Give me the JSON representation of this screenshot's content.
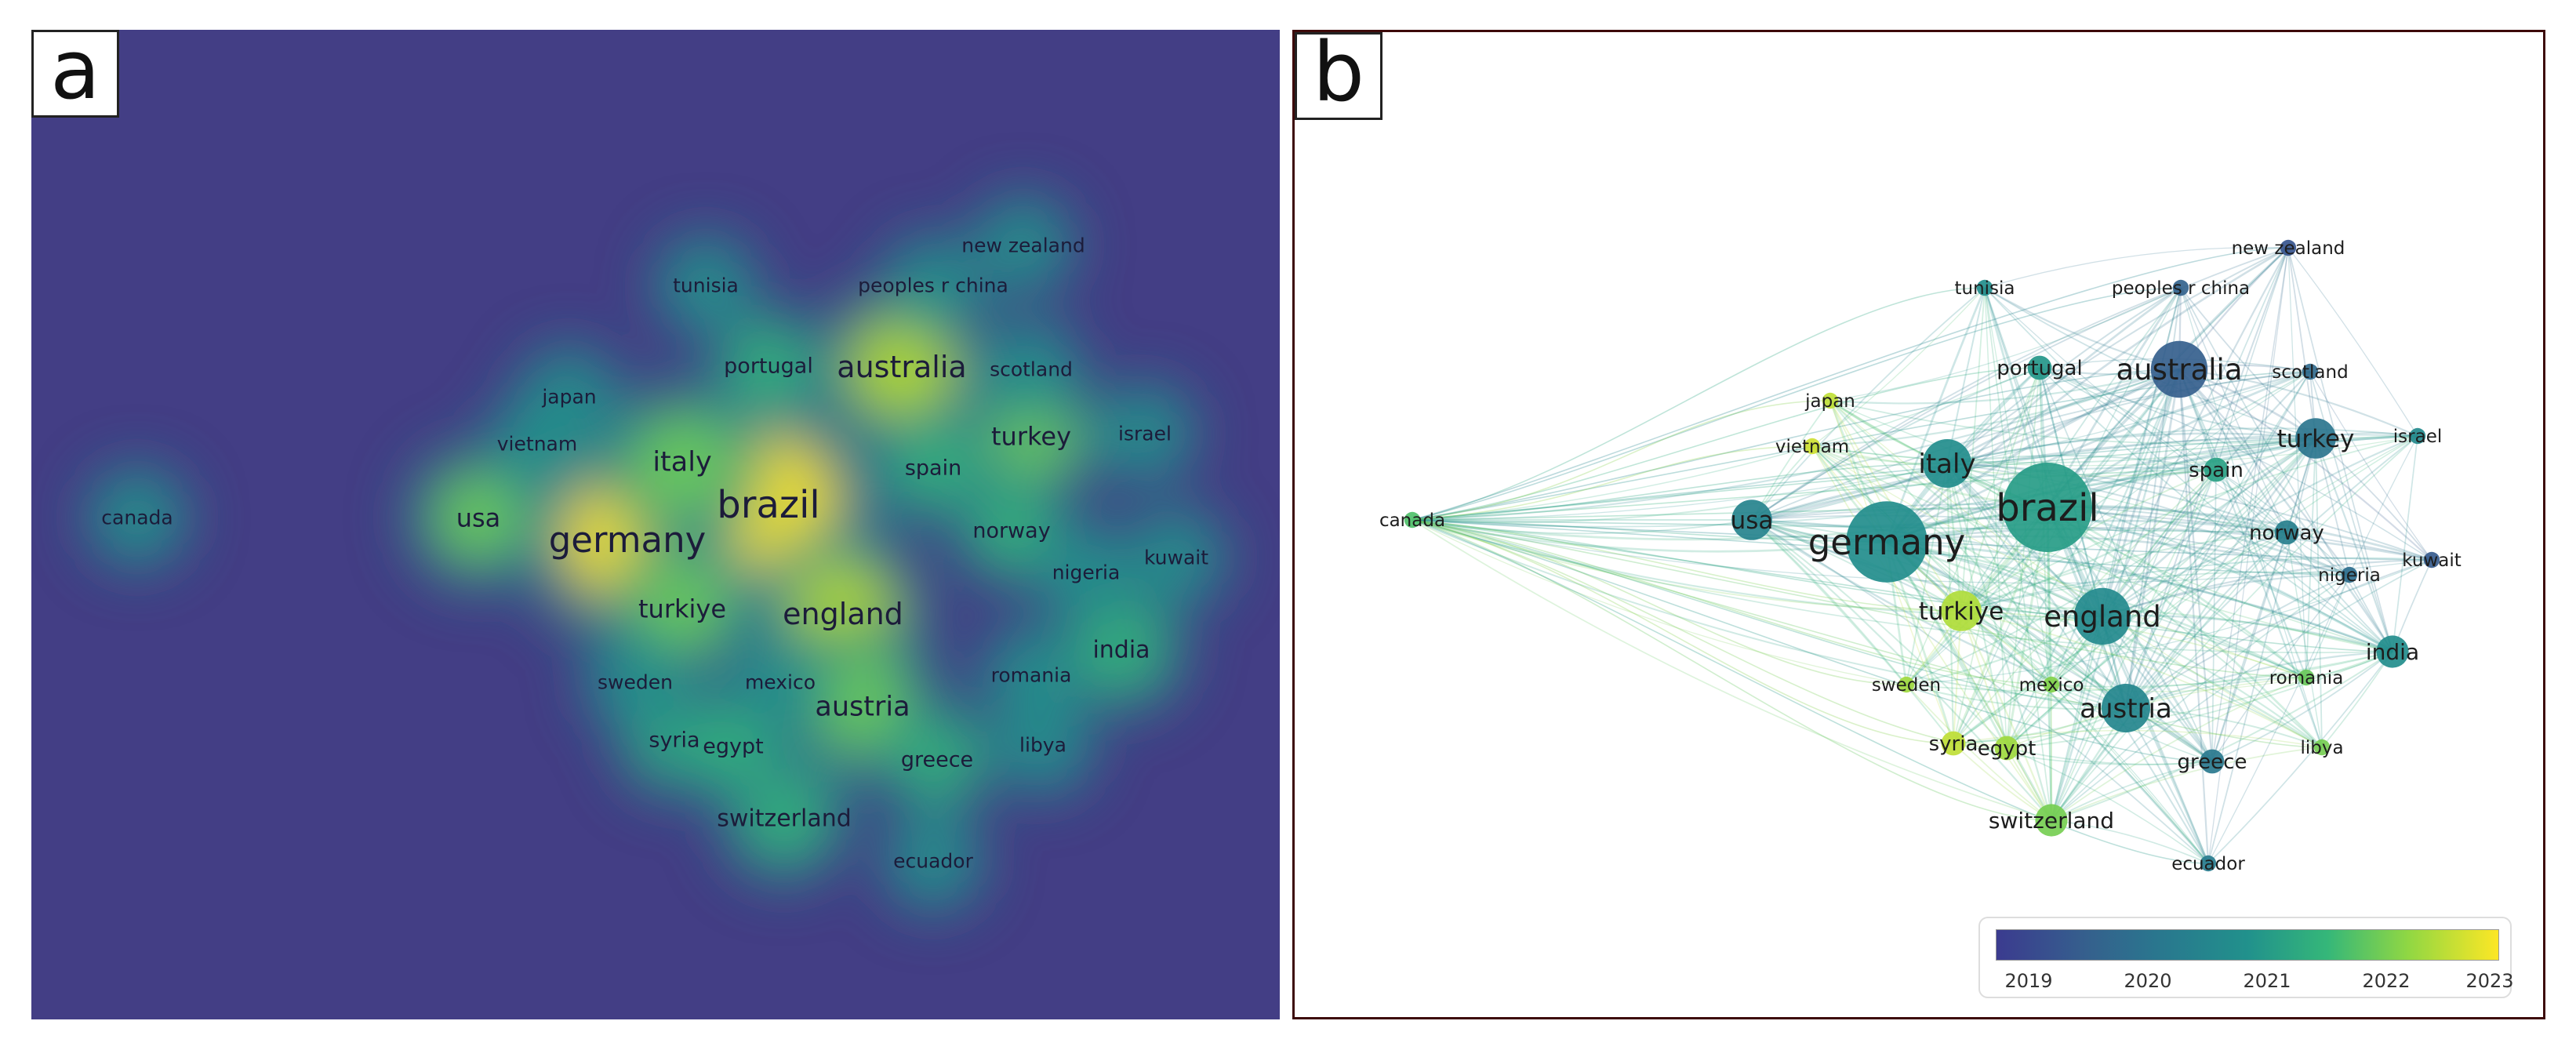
{
  "panel_a": {
    "letter": "a"
  },
  "panel_b": {
    "letter": "b"
  },
  "nodes": [
    {
      "id": "brazil",
      "label": "brazil",
      "weight": 10,
      "year": 2021.3
    },
    {
      "id": "germany",
      "label": "germany",
      "weight": 9,
      "year": 2021.0
    },
    {
      "id": "england",
      "label": "england",
      "weight": 6,
      "year": 2020.9
    },
    {
      "id": "italy",
      "label": "italy",
      "weight": 5,
      "year": 2021.0
    },
    {
      "id": "australia",
      "label": "australia",
      "weight": 6,
      "year": 2019.7
    },
    {
      "id": "austria",
      "label": "austria",
      "weight": 5,
      "year": 2020.8
    },
    {
      "id": "usa",
      "label": "usa",
      "weight": 4,
      "year": 2020.7
    },
    {
      "id": "turkey",
      "label": "turkey",
      "weight": 4,
      "year": 2020.3
    },
    {
      "id": "turkiye",
      "label": "turkiye",
      "weight": 4,
      "year": 2022.7
    },
    {
      "id": "india",
      "label": "india",
      "weight": 3,
      "year": 2021.0
    },
    {
      "id": "switzerland",
      "label": "switzerland",
      "weight": 3,
      "year": 2022.3
    },
    {
      "id": "greece",
      "label": "greece",
      "weight": 2,
      "year": 2020.4
    },
    {
      "id": "syria",
      "label": "syria",
      "weight": 2,
      "year": 2022.8
    },
    {
      "id": "egypt",
      "label": "egypt",
      "weight": 2,
      "year": 2022.6
    },
    {
      "id": "portugal",
      "label": "portugal",
      "weight": 2,
      "year": 2021.2
    },
    {
      "id": "spain",
      "label": "spain",
      "weight": 2,
      "year": 2021.4
    },
    {
      "id": "norway",
      "label": "norway",
      "weight": 2,
      "year": 2020.6
    },
    {
      "id": "nigeria",
      "label": "nigeria",
      "weight": 1,
      "year": 2020.1
    },
    {
      "id": "kuwait",
      "label": "kuwait",
      "weight": 1,
      "year": 2019.6
    },
    {
      "id": "romania",
      "label": "romania",
      "weight": 1,
      "year": 2022.2
    },
    {
      "id": "libya",
      "label": "libya",
      "weight": 1,
      "year": 2022.3
    },
    {
      "id": "mexico",
      "label": "mexico",
      "weight": 1,
      "year": 2022.4
    },
    {
      "id": "sweden",
      "label": "sweden",
      "weight": 1,
      "year": 2022.6
    },
    {
      "id": "tunisia",
      "label": "tunisia",
      "weight": 1,
      "year": 2021.0
    },
    {
      "id": "peoples_r_china",
      "label": "peoples r china",
      "weight": 1,
      "year": 2019.8
    },
    {
      "id": "new_zealand",
      "label": "new zealand",
      "weight": 1,
      "year": 2019.5
    },
    {
      "id": "scotland",
      "label": "scotland",
      "weight": 1,
      "year": 2020.0
    },
    {
      "id": "israel",
      "label": "israel",
      "weight": 1,
      "year": 2020.9
    },
    {
      "id": "japan",
      "label": "japan",
      "weight": 1,
      "year": 2022.8
    },
    {
      "id": "vietnam",
      "label": "vietnam",
      "weight": 1,
      "year": 2022.9
    },
    {
      "id": "canada",
      "label": "canada",
      "weight": 1,
      "year": 2022.0
    },
    {
      "id": "ecuador",
      "label": "ecuador",
      "weight": 1,
      "year": 2020.5
    }
  ],
  "legend": {
    "ticks": [
      "2019",
      "2020",
      "2021",
      "2022",
      "2023"
    ],
    "range": [
      2019,
      2023.2
    ]
  },
  "colors": {
    "density_background": "#433e85",
    "scale": [
      "#3b3b8f",
      "#35608d",
      "#29788e",
      "#21918c",
      "#35b779",
      "#90d743",
      "#fde725"
    ],
    "frame_b": "#3d0a0a"
  }
}
